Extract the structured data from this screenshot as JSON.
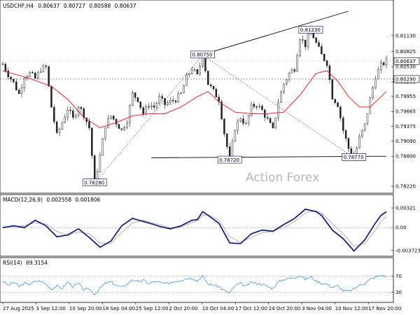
{
  "chart_data": [
    {
      "type": "candlestick",
      "symbol": "USDCHF",
      "timeframe": "H4",
      "ohlc": {
        "open": "0.80637",
        "high": "0.80727",
        "low": "0.80588",
        "close": "0.80637"
      },
      "price_axis_ticks": [
        "0.81130",
        "0.80825",
        "0.80530",
        "0.80235",
        "0.79955",
        "0.79665",
        "0.79375",
        "0.79090",
        "0.78800",
        "0.78220"
      ],
      "ylim": [
        0.7814,
        0.816
      ],
      "last_price": "0.80637",
      "horizontal_level": "0.80290",
      "annotations": [
        {
          "text": "0.81230",
          "x": 114,
          "price": 0.8123
        },
        {
          "text": "0.80750",
          "x": 74,
          "price": 0.8075
        },
        {
          "text": "0.78280",
          "x": 34,
          "price": 0.7828
        },
        {
          "text": "0.78720",
          "x": 84,
          "price": 0.7872
        },
        {
          "text": "0.78770",
          "x": 130,
          "price": 0.7877
        }
      ],
      "trendlines": [
        {
          "style": "solid",
          "from": {
            "x": 70,
            "price": 0.807
          },
          "to": {
            "x": 128,
            "price": 0.816
          }
        },
        {
          "style": "solid",
          "from": {
            "x": 55,
            "price": 0.7877
          },
          "to": {
            "x": 142,
            "price": 0.788
          }
        },
        {
          "style": "dotted",
          "from": {
            "x": 34,
            "price": 0.7828
          },
          "to": {
            "x": 74,
            "price": 0.8075
          }
        },
        {
          "style": "dotted",
          "from": {
            "x": 74,
            "price": 0.8075
          },
          "to": {
            "x": 130,
            "price": 0.7877
          }
        }
      ],
      "price_path": [
        [
          0,
          0.8058
        ],
        [
          2,
          0.8038
        ],
        [
          4,
          0.8022
        ],
        [
          6,
          0.8
        ],
        [
          8,
          0.8035
        ],
        [
          10,
          0.804
        ],
        [
          12,
          0.803
        ],
        [
          14,
          0.8048
        ],
        [
          16,
          0.8052
        ],
        [
          18,
          0.7975
        ],
        [
          20,
          0.792
        ],
        [
          22,
          0.7945
        ],
        [
          24,
          0.7972
        ],
        [
          26,
          0.7952
        ],
        [
          28,
          0.7978
        ],
        [
          30,
          0.796
        ],
        [
          32,
          0.7935
        ],
        [
          34,
          0.7828
        ],
        [
          36,
          0.788
        ],
        [
          38,
          0.794
        ],
        [
          40,
          0.7958
        ],
        [
          42,
          0.7945
        ],
        [
          44,
          0.793
        ],
        [
          46,
          0.795
        ],
        [
          48,
          0.8
        ],
        [
          50,
          0.799
        ],
        [
          52,
          0.7962
        ],
        [
          54,
          0.798
        ],
        [
          56,
          0.7975
        ],
        [
          58,
          0.7992
        ],
        [
          60,
          0.798
        ],
        [
          62,
          0.7985
        ],
        [
          64,
          0.799
        ],
        [
          66,
          0.8
        ],
        [
          68,
          0.8032
        ],
        [
          70,
          0.805
        ],
        [
          72,
          0.8035
        ],
        [
          74,
          0.8075
        ],
        [
          76,
          0.802
        ],
        [
          78,
          0.8005
        ],
        [
          80,
          0.799
        ],
        [
          82,
          0.7925
        ],
        [
          84,
          0.7872
        ],
        [
          86,
          0.7935
        ],
        [
          88,
          0.7955
        ],
        [
          90,
          0.794
        ],
        [
          92,
          0.7975
        ],
        [
          94,
          0.798
        ],
        [
          96,
          0.7968
        ],
        [
          98,
          0.795
        ],
        [
          100,
          0.793
        ],
        [
          102,
          0.7985
        ],
        [
          104,
          0.802
        ],
        [
          106,
          0.804
        ],
        [
          108,
          0.805
        ],
        [
          110,
          0.811
        ],
        [
          112,
          0.8095
        ],
        [
          114,
          0.8123
        ],
        [
          116,
          0.8098
        ],
        [
          118,
          0.8075
        ],
        [
          120,
          0.806
        ],
        [
          122,
          0.7995
        ],
        [
          124,
          0.798
        ],
        [
          126,
          0.793
        ],
        [
          128,
          0.7895
        ],
        [
          130,
          0.7877
        ],
        [
          132,
          0.7915
        ],
        [
          134,
          0.794
        ],
        [
          136,
          0.799
        ],
        [
          138,
          0.8035
        ],
        [
          140,
          0.8055
        ],
        [
          142,
          0.8064
        ]
      ],
      "ma_path": [
        [
          0,
          0.8045
        ],
        [
          10,
          0.803
        ],
        [
          18,
          0.8015
        ],
        [
          24,
          0.799
        ],
        [
          30,
          0.7955
        ],
        [
          36,
          0.7935
        ],
        [
          42,
          0.7945
        ],
        [
          48,
          0.7958
        ],
        [
          54,
          0.7962
        ],
        [
          60,
          0.7962
        ],
        [
          66,
          0.7975
        ],
        [
          72,
          0.7995
        ],
        [
          76,
          0.8005
        ],
        [
          80,
          0.7985
        ],
        [
          86,
          0.7965
        ],
        [
          92,
          0.7962
        ],
        [
          98,
          0.7962
        ],
        [
          104,
          0.7965
        ],
        [
          110,
          0.7998
        ],
        [
          116,
          0.804
        ],
        [
          120,
          0.8045
        ],
        [
          124,
          0.8025
        ],
        [
          128,
          0.7995
        ],
        [
          132,
          0.7975
        ],
        [
          136,
          0.7975
        ],
        [
          142,
          0.8005
        ]
      ]
    },
    {
      "type": "line",
      "indicator": "MACD(12,26,9)",
      "values_text": [
        "0.002558",
        "0.001806"
      ],
      "ylim": [
        -0.0042,
        0.0039
      ],
      "ticks": [
        "0.00321",
        "0.00",
        "-0.003723"
      ],
      "macd_path": [
        [
          0,
          0.0
        ],
        [
          4,
          0.0003
        ],
        [
          8,
          0.0
        ],
        [
          12,
          0.0012
        ],
        [
          16,
          0.0003
        ],
        [
          20,
          -0.0015
        ],
        [
          24,
          -0.0012
        ],
        [
          28,
          -0.0002
        ],
        [
          32,
          -0.0016
        ],
        [
          36,
          -0.0032
        ],
        [
          40,
          -0.0022
        ],
        [
          44,
          0.0003
        ],
        [
          48,
          0.0015
        ],
        [
          52,
          0.001
        ],
        [
          56,
          0.0005
        ],
        [
          58,
          0.0002
        ],
        [
          62,
          -0.0002
        ],
        [
          66,
          0.0003
        ],
        [
          70,
          0.0012
        ],
        [
          72,
          0.0013
        ],
        [
          74,
          0.0026
        ],
        [
          76,
          0.002
        ],
        [
          80,
          0.0007
        ],
        [
          84,
          -0.0025
        ],
        [
          88,
          -0.0026
        ],
        [
          92,
          -0.001
        ],
        [
          96,
          -0.0004
        ],
        [
          100,
          -0.0006
        ],
        [
          104,
          0.0005
        ],
        [
          108,
          0.0015
        ],
        [
          112,
          0.003
        ],
        [
          116,
          0.0026
        ],
        [
          118,
          0.002
        ],
        [
          122,
          -0.0004
        ],
        [
          126,
          -0.0018
        ],
        [
          130,
          -0.0038
        ],
        [
          134,
          -0.002
        ],
        [
          138,
          0.0008
        ],
        [
          140,
          0.002
        ],
        [
          142,
          0.0026
        ]
      ],
      "signal_path": [
        [
          0,
          0.0001
        ],
        [
          4,
          0.0002
        ],
        [
          8,
          0.0003
        ],
        [
          12,
          0.0008
        ],
        [
          16,
          0.0006
        ],
        [
          20,
          -0.0006
        ],
        [
          24,
          -0.0013
        ],
        [
          28,
          -0.0007
        ],
        [
          32,
          -0.001
        ],
        [
          36,
          -0.0025
        ],
        [
          40,
          -0.0026
        ],
        [
          44,
          -0.0008
        ],
        [
          48,
          0.0008
        ],
        [
          52,
          0.0012
        ],
        [
          56,
          0.0007
        ],
        [
          58,
          0.0005
        ],
        [
          62,
          0.0
        ],
        [
          66,
          0.0001
        ],
        [
          70,
          0.0008
        ],
        [
          72,
          0.0011
        ],
        [
          74,
          0.002
        ],
        [
          76,
          0.0021
        ],
        [
          80,
          0.0012
        ],
        [
          84,
          -0.0015
        ],
        [
          88,
          -0.0024
        ],
        [
          92,
          -0.0016
        ],
        [
          96,
          -0.0008
        ],
        [
          100,
          -0.0006
        ],
        [
          104,
          0.0
        ],
        [
          108,
          0.001
        ],
        [
          112,
          0.0024
        ],
        [
          116,
          0.0027
        ],
        [
          118,
          0.0024
        ],
        [
          122,
          0.0006
        ],
        [
          126,
          -0.001
        ],
        [
          130,
          -0.003
        ],
        [
          134,
          -0.0026
        ],
        [
          138,
          -0.0004
        ],
        [
          140,
          0.001
        ],
        [
          142,
          0.0018
        ]
      ]
    },
    {
      "type": "line",
      "indicator": "RSI(14)",
      "value_text": "69.3154",
      "ylim": [
        10,
        95
      ],
      "ticks": [
        "70",
        "30"
      ],
      "rsi_path": [
        [
          0,
          58
        ],
        [
          2,
          47
        ],
        [
          4,
          55
        ],
        [
          6,
          44
        ],
        [
          8,
          52
        ],
        [
          10,
          50
        ],
        [
          12,
          57
        ],
        [
          14,
          58
        ],
        [
          16,
          50
        ],
        [
          18,
          38
        ],
        [
          20,
          45
        ],
        [
          22,
          40
        ],
        [
          24,
          55
        ],
        [
          26,
          44
        ],
        [
          28,
          52
        ],
        [
          30,
          36
        ],
        [
          32,
          38
        ],
        [
          34,
          25
        ],
        [
          36,
          40
        ],
        [
          38,
          52
        ],
        [
          40,
          56
        ],
        [
          42,
          47
        ],
        [
          44,
          42
        ],
        [
          46,
          50
        ],
        [
          48,
          62
        ],
        [
          50,
          55
        ],
        [
          52,
          60
        ],
        [
          54,
          52
        ],
        [
          56,
          56
        ],
        [
          58,
          55
        ],
        [
          60,
          50
        ],
        [
          62,
          54
        ],
        [
          64,
          58
        ],
        [
          66,
          60
        ],
        [
          68,
          64
        ],
        [
          70,
          66
        ],
        [
          72,
          58
        ],
        [
          74,
          70
        ],
        [
          76,
          50
        ],
        [
          78,
          48
        ],
        [
          80,
          44
        ],
        [
          82,
          34
        ],
        [
          84,
          28
        ],
        [
          86,
          46
        ],
        [
          88,
          52
        ],
        [
          90,
          44
        ],
        [
          92,
          55
        ],
        [
          94,
          52
        ],
        [
          96,
          50
        ],
        [
          98,
          44
        ],
        [
          100,
          40
        ],
        [
          102,
          56
        ],
        [
          104,
          62
        ],
        [
          106,
          64
        ],
        [
          108,
          66
        ],
        [
          110,
          72
        ],
        [
          112,
          62
        ],
        [
          114,
          68
        ],
        [
          116,
          58
        ],
        [
          118,
          52
        ],
        [
          120,
          50
        ],
        [
          122,
          42
        ],
        [
          124,
          46
        ],
        [
          126,
          34
        ],
        [
          128,
          32
        ],
        [
          130,
          38
        ],
        [
          132,
          48
        ],
        [
          134,
          52
        ],
        [
          136,
          62
        ],
        [
          138,
          68
        ],
        [
          140,
          72
        ],
        [
          142,
          69
        ]
      ]
    }
  ],
  "time_axis": {
    "labels": [
      "27 Aug 2025",
      "3 Sep 12:00",
      "10 Sep 20:00",
      "18 Sep 04:00",
      "25 Sep 12:00",
      "2 Oct 20:00",
      "10 Oct 04:00",
      "17 Oct 12:00",
      "24 Oct 20:00",
      "3 Nov 04:00",
      "10 Nov 12:00",
      "17 Nov 20:00"
    ],
    "positions": [
      0,
      12.3,
      24.6,
      36.9,
      49.2,
      61.5,
      73.8,
      86.1,
      98.4,
      110.7,
      123,
      135.3
    ]
  },
  "watermark": "Action Forex",
  "colors": {
    "candle": "#222222",
    "ma": "#e8262b",
    "trendline": "#000000",
    "dotted": "#666666",
    "macd": "#1a237e",
    "signal": "#b5b5b5",
    "rsi": "#2f86d6",
    "label_border": "#1a237e",
    "grid": "#cccccc",
    "last_price_bg": "#ffffff"
  }
}
